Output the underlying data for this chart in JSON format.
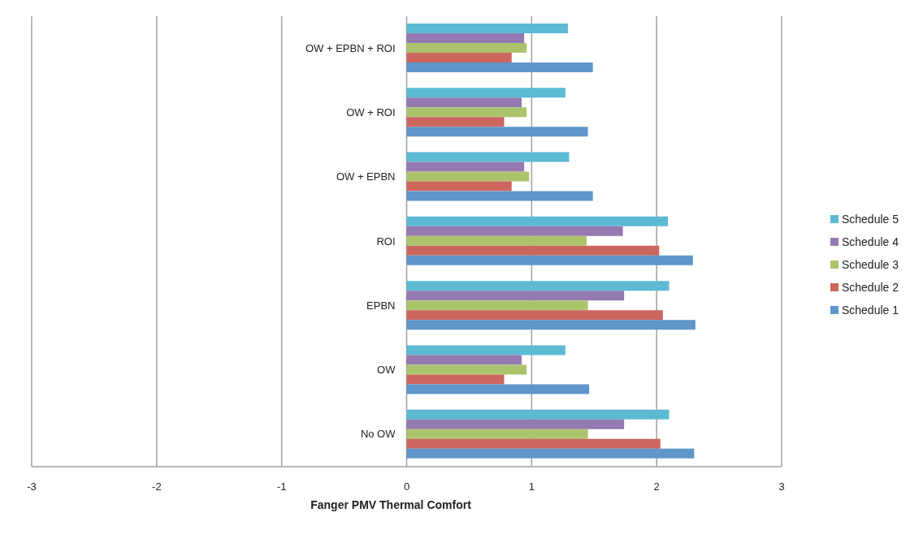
{
  "chart_data": {
    "type": "bar",
    "orientation": "horizontal",
    "xlabel": "Fanger PMV Thermal Comfort",
    "categories": [
      "OW + EPBN + ROI",
      "OW + ROI",
      "OW + EPBN",
      "ROI",
      "EPBN",
      "OW",
      "No OW"
    ],
    "series": [
      {
        "name": "Schedule 1",
        "color": "#6096c9",
        "values": [
          1.49,
          1.45,
          1.49,
          2.29,
          2.31,
          1.46,
          2.3
        ]
      },
      {
        "name": "Schedule 2",
        "color": "#cd665f",
        "values": [
          0.84,
          0.78,
          0.84,
          2.02,
          2.05,
          0.78,
          2.03
        ]
      },
      {
        "name": "Schedule 3",
        "color": "#abc46c",
        "values": [
          0.96,
          0.96,
          0.98,
          1.44,
          1.45,
          0.96,
          1.45
        ]
      },
      {
        "name": "Schedule 4",
        "color": "#947ab0",
        "values": [
          0.94,
          0.92,
          0.94,
          1.73,
          1.74,
          0.92,
          1.74
        ]
      },
      {
        "name": "Schedule 5",
        "color": "#5cbad3",
        "values": [
          1.29,
          1.27,
          1.3,
          2.09,
          2.1,
          1.27,
          2.1
        ]
      }
    ],
    "xlim": [
      -3,
      3
    ],
    "xticks": [
      -3,
      -2,
      -1,
      0,
      1,
      2,
      3
    ],
    "grid": "x",
    "legend": "right"
  }
}
